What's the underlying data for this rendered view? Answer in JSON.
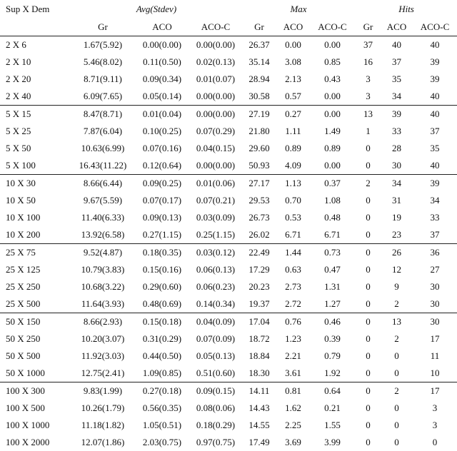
{
  "header": {
    "first": "Sup X Dem",
    "groups": [
      "Avg(Stdev)",
      "Max",
      "Hits"
    ],
    "columns": [
      "Gr",
      "ACO",
      "ACO-C",
      "Gr",
      "ACO",
      "ACO-C",
      "Gr",
      "ACO",
      "ACO-C"
    ]
  },
  "table": {
    "groups": [
      {
        "rows": [
          [
            "2 X 6",
            "1.67(5.92)",
            "0.00(0.00)",
            "0.00(0.00)",
            "26.37",
            "0.00",
            "0.00",
            "37",
            "40",
            "40"
          ],
          [
            "2 X 10",
            "5.46(8.02)",
            "0.11(0.50)",
            "0.02(0.13)",
            "35.14",
            "3.08",
            "0.85",
            "16",
            "37",
            "39"
          ],
          [
            "2 X 20",
            "8.71(9.11)",
            "0.09(0.34)",
            "0.01(0.07)",
            "28.94",
            "2.13",
            "0.43",
            "3",
            "35",
            "39"
          ],
          [
            "2 X 40",
            "6.09(7.65)",
            "0.05(0.14)",
            "0.00(0.00)",
            "30.58",
            "0.57",
            "0.00",
            "3",
            "34",
            "40"
          ]
        ]
      },
      {
        "rows": [
          [
            "5 X 15",
            "8.47(8.71)",
            "0.01(0.04)",
            "0.00(0.00)",
            "27.19",
            "0.27",
            "0.00",
            "13",
            "39",
            "40"
          ],
          [
            "5 X 25",
            "7.87(6.04)",
            "0.10(0.25)",
            "0.07(0.29)",
            "21.80",
            "1.11",
            "1.49",
            "1",
            "33",
            "37"
          ],
          [
            "5 X 50",
            "10.63(6.99)",
            "0.07(0.16)",
            "0.04(0.15)",
            "29.60",
            "0.89",
            "0.89",
            "0",
            "28",
            "35"
          ],
          [
            "5 X 100",
            "16.43(11.22)",
            "0.12(0.64)",
            "0.00(0.00)",
            "50.93",
            "4.09",
            "0.00",
            "0",
            "30",
            "40"
          ]
        ]
      },
      {
        "rows": [
          [
            "10 X 30",
            "8.66(6.44)",
            "0.09(0.25)",
            "0.01(0.06)",
            "27.17",
            "1.13",
            "0.37",
            "2",
            "34",
            "39"
          ],
          [
            "10 X 50",
            "9.67(5.59)",
            "0.07(0.17)",
            "0.07(0.21)",
            "29.53",
            "0.70",
            "1.08",
            "0",
            "31",
            "34"
          ],
          [
            "10 X 100",
            "11.40(6.33)",
            "0.09(0.13)",
            "0.03(0.09)",
            "26.73",
            "0.53",
            "0.48",
            "0",
            "19",
            "33"
          ],
          [
            "10 X 200",
            "13.92(6.58)",
            "0.27(1.15)",
            "0.25(1.15)",
            "26.02",
            "6.71",
            "6.71",
            "0",
            "23",
            "37"
          ]
        ]
      },
      {
        "rows": [
          [
            "25 X 75",
            "9.52(4.87)",
            "0.18(0.35)",
            "0.03(0.12)",
            "22.49",
            "1.44",
            "0.73",
            "0",
            "26",
            "36"
          ],
          [
            "25 X 125",
            "10.79(3.83)",
            "0.15(0.16)",
            "0.06(0.13)",
            "17.29",
            "0.63",
            "0.47",
            "0",
            "12",
            "27"
          ],
          [
            "25 X 250",
            "10.68(3.22)",
            "0.29(0.60)",
            "0.06(0.23)",
            "20.23",
            "2.73",
            "1.31",
            "0",
            "9",
            "30"
          ],
          [
            "25 X 500",
            "11.64(3.93)",
            "0.48(0.69)",
            "0.14(0.34)",
            "19.37",
            "2.72",
            "1.27",
            "0",
            "2",
            "30"
          ]
        ]
      },
      {
        "rows": [
          [
            "50 X 150",
            "8.66(2.93)",
            "0.15(0.18)",
            "0.04(0.09)",
            "17.04",
            "0.76",
            "0.46",
            "0",
            "13",
            "30"
          ],
          [
            "50 X 250",
            "10.20(3.07)",
            "0.31(0.29)",
            "0.07(0.09)",
            "18.72",
            "1.23",
            "0.39",
            "0",
            "2",
            "17"
          ],
          [
            "50 X 500",
            "11.92(3.03)",
            "0.44(0.50)",
            "0.05(0.13)",
            "18.84",
            "2.21",
            "0.79",
            "0",
            "0",
            "11"
          ],
          [
            "50 X 1000",
            "12.75(2.41)",
            "1.09(0.85)",
            "0.51(0.60)",
            "18.30",
            "3.61",
            "1.92",
            "0",
            "0",
            "10"
          ]
        ]
      },
      {
        "rows": [
          [
            "100 X 300",
            "9.83(1.99)",
            "0.27(0.18)",
            "0.09(0.15)",
            "14.11",
            "0.81",
            "0.64",
            "0",
            "2",
            "17"
          ],
          [
            "100 X 500",
            "10.26(1.79)",
            "0.56(0.35)",
            "0.08(0.06)",
            "14.43",
            "1.62",
            "0.21",
            "0",
            "0",
            "3"
          ],
          [
            "100 X 1000",
            "11.18(1.82)",
            "1.05(0.51)",
            "0.18(0.29)",
            "14.55",
            "2.25",
            "1.55",
            "0",
            "0",
            "3"
          ],
          [
            "100 X 2000",
            "12.07(1.86)",
            "2.03(0.75)",
            "0.97(0.75)",
            "17.49",
            "3.69",
            "3.99",
            "0",
            "0",
            "0"
          ]
        ]
      }
    ]
  }
}
